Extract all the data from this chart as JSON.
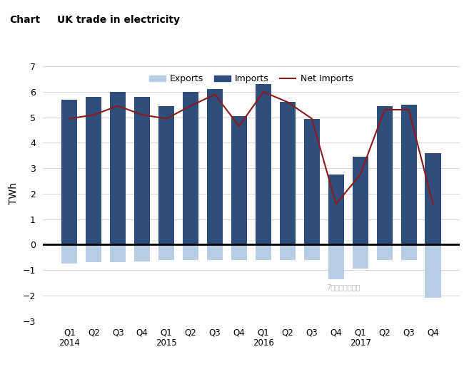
{
  "title_prefix": "Chart",
  "title": "UK trade in electricity",
  "ylabel": "TWh",
  "categories": [
    "Q1\n2014",
    "Q2",
    "Q3",
    "Q4",
    "Q1\n2015",
    "Q2",
    "Q3",
    "Q4",
    "Q1\n2016",
    "Q2",
    "Q3",
    "Q4",
    "Q1\n2017",
    "Q2",
    "Q3",
    "Q4"
  ],
  "imports": [
    5.7,
    5.8,
    6.0,
    5.8,
    5.45,
    6.0,
    6.1,
    5.05,
    6.3,
    5.6,
    4.95,
    2.75,
    3.45,
    5.45,
    5.5,
    3.6
  ],
  "exports": [
    -0.75,
    -0.7,
    -0.7,
    -0.65,
    -0.6,
    -0.6,
    -0.6,
    -0.6,
    -0.6,
    -0.6,
    -0.6,
    -1.35,
    -0.95,
    -0.6,
    -0.6,
    -2.1
  ],
  "net_imports": [
    4.95,
    5.1,
    5.45,
    5.1,
    4.95,
    5.45,
    5.9,
    4.65,
    6.0,
    5.6,
    4.95,
    1.6,
    2.75,
    5.3,
    5.3,
    1.6
  ],
  "import_color": "#2E4D7B",
  "export_color": "#B8CCE4",
  "net_imports_color": "#8B1A1A",
  "ylim": [
    -3,
    7
  ],
  "yticks": [
    -3,
    -2,
    -1,
    0,
    1,
    2,
    3,
    4,
    5,
    6,
    7
  ],
  "background_color": "#FFFFFF",
  "legend_exports": "Exports",
  "legend_imports": "Imports",
  "legend_net": "Net Imports",
  "watermark": "7国际能源小数据"
}
